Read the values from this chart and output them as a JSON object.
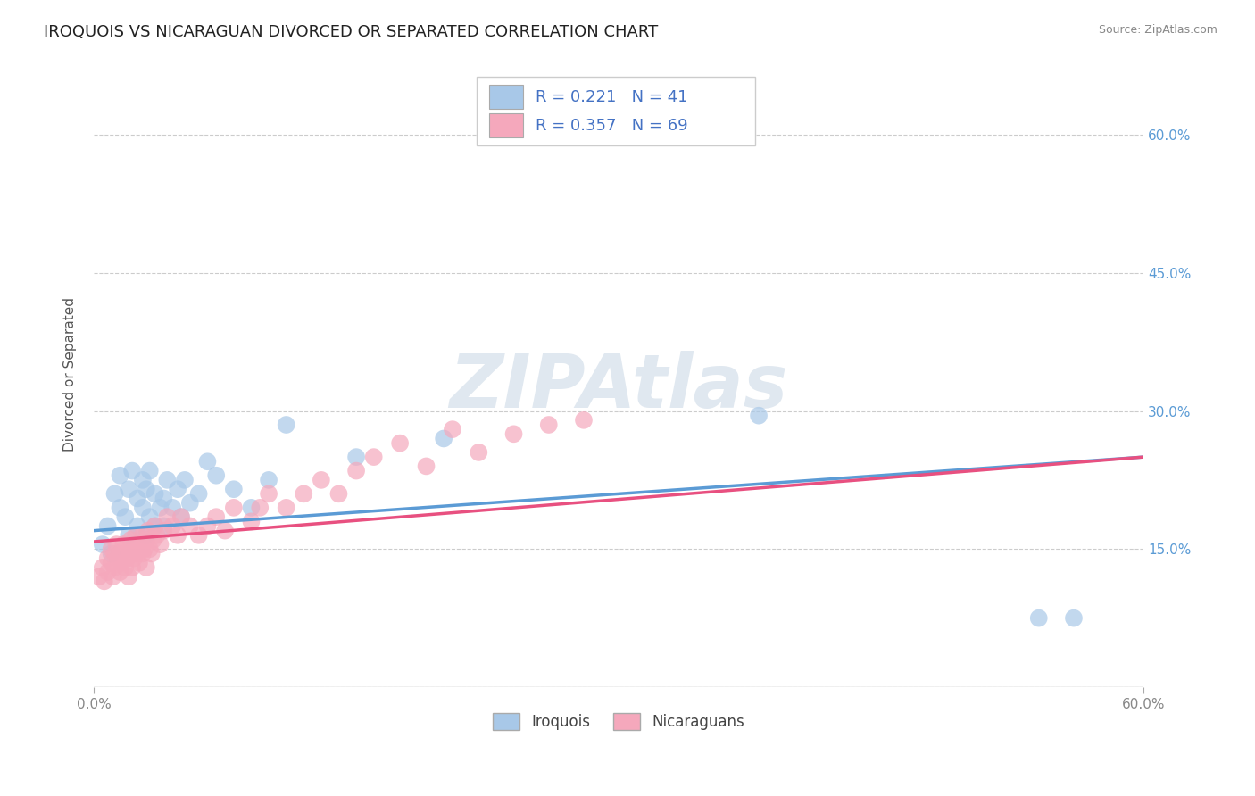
{
  "title": "IROQUOIS VS NICARAGUAN DIVORCED OR SEPARATED CORRELATION CHART",
  "source": "Source: ZipAtlas.com",
  "watermark": "ZIPAtlas",
  "ylabel": "Divorced or Separated",
  "legend_r": [
    "R = 0.221",
    "R = 0.357"
  ],
  "legend_n": [
    "N = 41",
    "N = 69"
  ],
  "iroquois_color": "#a8c8e8",
  "nicaraguan_color": "#f5a8bc",
  "iroquois_line_color": "#5b9bd5",
  "nicaraguan_line_color": "#e85080",
  "legend_text_color": "#4472c4",
  "background_color": "#ffffff",
  "grid_color": "#cccccc",
  "x_min": 0.0,
  "x_max": 0.6,
  "y_min": 0.0,
  "y_max": 0.68,
  "iroquois_scatter_x": [
    0.005,
    0.008,
    0.01,
    0.012,
    0.015,
    0.015,
    0.018,
    0.02,
    0.02,
    0.022,
    0.025,
    0.025,
    0.028,
    0.028,
    0.03,
    0.03,
    0.032,
    0.032,
    0.035,
    0.035,
    0.038,
    0.04,
    0.04,
    0.042,
    0.045,
    0.048,
    0.05,
    0.052,
    0.055,
    0.06,
    0.065,
    0.07,
    0.08,
    0.09,
    0.1,
    0.11,
    0.15,
    0.2,
    0.38,
    0.54,
    0.56
  ],
  "iroquois_scatter_y": [
    0.155,
    0.175,
    0.145,
    0.21,
    0.195,
    0.23,
    0.185,
    0.165,
    0.215,
    0.235,
    0.175,
    0.205,
    0.225,
    0.195,
    0.165,
    0.215,
    0.185,
    0.235,
    0.175,
    0.21,
    0.195,
    0.175,
    0.205,
    0.225,
    0.195,
    0.215,
    0.185,
    0.225,
    0.2,
    0.21,
    0.245,
    0.23,
    0.215,
    0.195,
    0.225,
    0.285,
    0.25,
    0.27,
    0.295,
    0.075,
    0.075
  ],
  "nicaraguan_scatter_x": [
    0.003,
    0.005,
    0.006,
    0.008,
    0.008,
    0.01,
    0.01,
    0.011,
    0.012,
    0.012,
    0.013,
    0.014,
    0.015,
    0.015,
    0.016,
    0.017,
    0.018,
    0.018,
    0.019,
    0.02,
    0.02,
    0.021,
    0.022,
    0.022,
    0.023,
    0.024,
    0.025,
    0.025,
    0.026,
    0.027,
    0.028,
    0.028,
    0.029,
    0.03,
    0.03,
    0.031,
    0.032,
    0.033,
    0.034,
    0.035,
    0.036,
    0.038,
    0.04,
    0.042,
    0.045,
    0.048,
    0.05,
    0.055,
    0.06,
    0.065,
    0.07,
    0.075,
    0.08,
    0.09,
    0.095,
    0.1,
    0.11,
    0.12,
    0.13,
    0.14,
    0.15,
    0.16,
    0.175,
    0.19,
    0.205,
    0.22,
    0.24,
    0.26,
    0.28
  ],
  "nicaraguan_scatter_y": [
    0.12,
    0.13,
    0.115,
    0.14,
    0.125,
    0.135,
    0.15,
    0.12,
    0.145,
    0.13,
    0.155,
    0.14,
    0.125,
    0.145,
    0.135,
    0.155,
    0.13,
    0.15,
    0.14,
    0.12,
    0.145,
    0.16,
    0.13,
    0.15,
    0.14,
    0.165,
    0.145,
    0.155,
    0.135,
    0.155,
    0.145,
    0.165,
    0.15,
    0.13,
    0.16,
    0.17,
    0.15,
    0.145,
    0.16,
    0.175,
    0.165,
    0.155,
    0.17,
    0.185,
    0.175,
    0.165,
    0.185,
    0.175,
    0.165,
    0.175,
    0.185,
    0.17,
    0.195,
    0.18,
    0.195,
    0.21,
    0.195,
    0.21,
    0.225,
    0.21,
    0.235,
    0.25,
    0.265,
    0.24,
    0.28,
    0.255,
    0.275,
    0.285,
    0.29
  ],
  "iroquois_trend_x": [
    0.0,
    0.6
  ],
  "iroquois_trend_y": [
    0.17,
    0.25
  ],
  "nicaraguan_trend_x": [
    0.0,
    0.6
  ],
  "nicaraguan_trend_y": [
    0.158,
    0.25
  ],
  "ytick_positions": [
    0.0,
    0.15,
    0.3,
    0.45,
    0.6
  ],
  "ytick_labels": [
    "",
    "15.0%",
    "30.0%",
    "45.0%",
    "60.0%"
  ],
  "xtick_positions": [
    0.0,
    0.6
  ],
  "xtick_labels": [
    "0.0%",
    "60.0%"
  ]
}
